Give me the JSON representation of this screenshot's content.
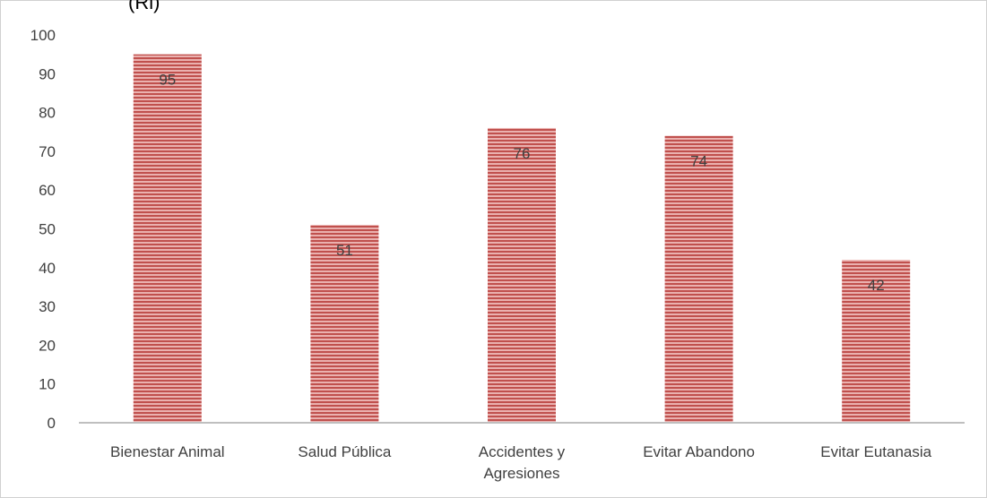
{
  "chart_data": {
    "type": "bar",
    "title": "(Ri)",
    "categories": [
      "Bienestar Animal",
      "Salud Pública",
      "Accidentes y Agresiones",
      "Evitar Abandono",
      "Evitar Eutanasia"
    ],
    "category_lines": [
      [
        "Bienestar Animal"
      ],
      [
        "Salud Pública"
      ],
      [
        "Accidentes y",
        "Agresiones"
      ],
      [
        "Evitar Abandono"
      ],
      [
        "Evitar Eutanasia"
      ]
    ],
    "values": [
      95,
      51,
      76,
      74,
      42
    ],
    "yticks": [
      "0",
      "10",
      "20",
      "30",
      "40",
      "50",
      "60",
      "70",
      "80",
      "90",
      "100"
    ],
    "ylim": [
      0,
      100
    ],
    "grid": false,
    "bar_color": "#c0504d",
    "bar_stripe_color": "#e6a9a7",
    "data_labels": true
  }
}
